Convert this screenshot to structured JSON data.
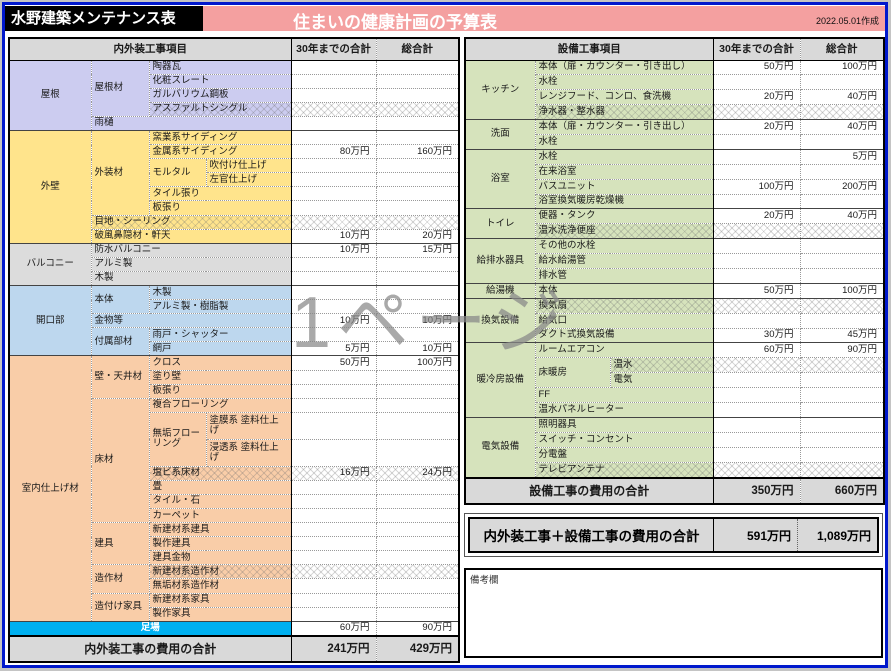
{
  "header": {
    "app_title": "水野建築メンテナンス表",
    "document_title": "住まいの健康計画の予算表",
    "date_note": "2022.05.01作成"
  },
  "watermark": "1ページ",
  "colors": {
    "frame_blue": "#0018cc",
    "banner_pink": "#f4a0a0",
    "title_box_black": "#000000",
    "scaffold_cyan": "#00b0f0",
    "roof_lavender": "#ccccf0",
    "wall_yellow": "#ffe48c",
    "balcony_gray": "#dcdcdc",
    "opening_blue": "#bdd7ee",
    "interior_peach": "#f9cda8",
    "equipment_green": "#d6e3bc",
    "header_gray": "#d9d9d9"
  },
  "left_table": {
    "title": "内外装工事項目",
    "col_30y": "30年までの合計",
    "col_total": "総合計",
    "rows": [
      {
        "cells": [
          {
            "t": "屋根",
            "rs": 5,
            "cls": "roof c"
          },
          {
            "t": "屋根材",
            "rs": 4,
            "cls": "roof"
          },
          {
            "t": "陶器瓦",
            "cs": 2,
            "cls": "roof"
          }
        ],
        "v30": "",
        "vt": ""
      },
      {
        "cells": [
          {
            "t": "化粧スレート",
            "cs": 2,
            "cls": "roof"
          }
        ],
        "v30": "",
        "vt": ""
      },
      {
        "cells": [
          {
            "t": "ガルバリウム鋼板",
            "cs": 2,
            "cls": "roof"
          }
        ],
        "v30": "",
        "vt": ""
      },
      {
        "cells": [
          {
            "t": "アスファルトシングル",
            "cs": 2,
            "cls": "roof"
          }
        ],
        "v30": "",
        "vt": "",
        "hatch": true
      },
      {
        "cells": [
          {
            "t": "雨樋",
            "cs": 3,
            "cls": "roof"
          }
        ],
        "v30": "",
        "vt": ""
      },
      {
        "cells": [
          {
            "t": "外壁",
            "rs": 8,
            "cls": "wall c"
          },
          {
            "t": "外装材",
            "rs": 6,
            "cls": "wall"
          },
          {
            "t": "窯業系サイディング",
            "cs": 2,
            "cls": "wall"
          }
        ],
        "v30": "",
        "vt": ""
      },
      {
        "cells": [
          {
            "t": "金属系サイディング",
            "cs": 2,
            "cls": "wall"
          }
        ],
        "v30": "80万円",
        "vt": "160万円"
      },
      {
        "cells": [
          {
            "t": "モルタル",
            "rs": 2,
            "cls": "wall"
          },
          {
            "t": "吹付け仕上げ",
            "cls": "wall"
          }
        ],
        "v30": "",
        "vt": ""
      },
      {
        "cells": [
          {
            "t": "左官仕上げ",
            "cls": "wall"
          }
        ],
        "v30": "",
        "vt": ""
      },
      {
        "cells": [
          {
            "t": "タイル張り",
            "cs": 2,
            "cls": "wall"
          }
        ],
        "v30": "",
        "vt": ""
      },
      {
        "cells": [
          {
            "t": "板張り",
            "cs": 2,
            "cls": "wall"
          }
        ],
        "v30": "",
        "vt": ""
      },
      {
        "cells": [
          {
            "t": "目地・シーリング",
            "cs": 3,
            "cls": "wall"
          }
        ],
        "v30": "",
        "vt": "",
        "hatch": true
      },
      {
        "cells": [
          {
            "t": "破風鼻隠材・軒天",
            "cs": 3,
            "cls": "wall"
          }
        ],
        "v30": "10万円",
        "vt": "20万円"
      },
      {
        "cells": [
          {
            "t": "バルコニー",
            "rs": 3,
            "cls": "balc c"
          },
          {
            "t": "防水バルコニー",
            "cs": 3,
            "cls": "balc"
          }
        ],
        "v30": "10万円",
        "vt": "15万円"
      },
      {
        "cells": [
          {
            "t": "アルミ製",
            "cs": 3,
            "cls": "balc"
          }
        ],
        "v30": "",
        "vt": ""
      },
      {
        "cells": [
          {
            "t": "木製",
            "cs": 3,
            "cls": "balc"
          }
        ],
        "v30": "",
        "vt": ""
      },
      {
        "cells": [
          {
            "t": "開口部",
            "rs": 5,
            "cls": "open c"
          },
          {
            "t": "本体",
            "rs": 2,
            "cls": "open"
          },
          {
            "t": "木製",
            "cs": 2,
            "cls": "open"
          }
        ],
        "v30": "",
        "vt": ""
      },
      {
        "cells": [
          {
            "t": "アルミ製・樹脂製",
            "cs": 2,
            "cls": "open"
          }
        ],
        "v30": "",
        "vt": ""
      },
      {
        "cells": [
          {
            "t": "金物等",
            "cs": 3,
            "cls": "open"
          }
        ],
        "v30": "10万円",
        "vt": "10万円"
      },
      {
        "cells": [
          {
            "t": "付属部材",
            "rs": 2,
            "cls": "open"
          },
          {
            "t": "雨戸・シャッター",
            "cs": 2,
            "cls": "open"
          }
        ],
        "v30": "",
        "vt": ""
      },
      {
        "cells": [
          {
            "t": "網戸",
            "cs": 2,
            "cls": "open"
          }
        ],
        "v30": "5万円",
        "vt": "10万円"
      },
      {
        "cells": [
          {
            "t": "室内仕上げ材",
            "rs": 17,
            "cls": "intr c"
          },
          {
            "t": "壁・天井材",
            "rs": 3,
            "cls": "intr"
          },
          {
            "t": "クロス",
            "cs": 2,
            "cls": "intr"
          }
        ],
        "v30": "50万円",
        "vt": "100万円"
      },
      {
        "cells": [
          {
            "t": "塗り壁",
            "cs": 2,
            "cls": "intr"
          }
        ],
        "v30": "",
        "vt": ""
      },
      {
        "cells": [
          {
            "t": "板張り",
            "cs": 2,
            "cls": "intr"
          }
        ],
        "v30": "",
        "vt": ""
      },
      {
        "cells": [
          {
            "t": "床材",
            "rs": 7,
            "cls": "intr"
          },
          {
            "t": "複合フローリング",
            "cs": 2,
            "cls": "intr"
          }
        ],
        "v30": "",
        "vt": ""
      },
      {
        "cells": [
          {
            "t": "無垢フローリング",
            "rs": 2,
            "cls": "intr"
          },
          {
            "t": "塗膜系 塗料仕上げ",
            "cls": "intr"
          }
        ],
        "v30": "",
        "vt": ""
      },
      {
        "cells": [
          {
            "t": "浸透系 塗料仕上げ",
            "cls": "intr"
          }
        ],
        "v30": "",
        "vt": ""
      },
      {
        "cells": [
          {
            "t": "塩ビ系床材",
            "cs": 2,
            "cls": "intr"
          }
        ],
        "v30": "16万円",
        "vt": "24万円",
        "hatch": true
      },
      {
        "cells": [
          {
            "t": "畳",
            "cs": 2,
            "cls": "intr"
          }
        ],
        "v30": "",
        "vt": ""
      },
      {
        "cells": [
          {
            "t": "タイル・石",
            "cs": 2,
            "cls": "intr"
          }
        ],
        "v30": "",
        "vt": ""
      },
      {
        "cells": [
          {
            "t": "カーペット",
            "cs": 2,
            "cls": "intr"
          }
        ],
        "v30": "",
        "vt": ""
      },
      {
        "cells": [
          {
            "t": "建具",
            "rs": 3,
            "cls": "intr"
          },
          {
            "t": "新建材系建具",
            "cs": 2,
            "cls": "intr"
          }
        ],
        "v30": "",
        "vt": ""
      },
      {
        "cells": [
          {
            "t": "製作建具",
            "cs": 2,
            "cls": "intr"
          }
        ],
        "v30": "",
        "vt": ""
      },
      {
        "cells": [
          {
            "t": "建具金物",
            "cs": 2,
            "cls": "intr"
          }
        ],
        "v30": "",
        "vt": ""
      },
      {
        "cells": [
          {
            "t": "造作材",
            "rs": 2,
            "cls": "intr"
          },
          {
            "t": "新建材系造作材",
            "cs": 2,
            "cls": "intr"
          }
        ],
        "v30": "",
        "vt": "",
        "hatch": true
      },
      {
        "cells": [
          {
            "t": "無垢材系造作材",
            "cs": 2,
            "cls": "intr"
          }
        ],
        "v30": "",
        "vt": ""
      },
      {
        "cells": [
          {
            "t": "造付け家具",
            "rs": 2,
            "cls": "intr"
          },
          {
            "t": "新建材系家具",
            "cs": 2,
            "cls": "intr"
          }
        ],
        "v30": "",
        "vt": ""
      },
      {
        "cells": [
          {
            "t": "製作家具",
            "cs": 2,
            "cls": "intr"
          }
        ],
        "v30": "",
        "vt": ""
      },
      {
        "cells": [
          {
            "t": "足場",
            "cs": 4,
            "cls": "scaffold"
          }
        ],
        "v30": "60万円",
        "vt": "90万円"
      }
    ],
    "total": {
      "label": "内外装工事の費用の合計",
      "v30": "241万円",
      "vt": "429万円"
    }
  },
  "right_table": {
    "title": "設備工事項目",
    "col_30y": "30年までの合計",
    "col_total": "総合計",
    "rows": [
      {
        "cells": [
          {
            "t": "キッチン",
            "rs": 4,
            "cls": "grn c"
          },
          {
            "t": "本体（扉・カウンター・引き出し）",
            "cs": 2,
            "cls": "grn"
          }
        ],
        "v30": "50万円",
        "vt": "100万円"
      },
      {
        "cells": [
          {
            "t": "水栓",
            "cs": 2,
            "cls": "grn"
          }
        ],
        "v30": "",
        "vt": ""
      },
      {
        "cells": [
          {
            "t": "レンジフード、コンロ、食洗機",
            "cs": 2,
            "cls": "grn"
          }
        ],
        "v30": "20万円",
        "vt": "40万円"
      },
      {
        "cells": [
          {
            "t": "浄水器・整水器",
            "cs": 2,
            "cls": "grn"
          }
        ],
        "v30": "",
        "vt": "",
        "hatch": true
      },
      {
        "cells": [
          {
            "t": "洗面",
            "rs": 2,
            "cls": "grn c"
          },
          {
            "t": "本体（扉・カウンター・引き出し）",
            "cs": 2,
            "cls": "grn"
          }
        ],
        "v30": "20万円",
        "vt": "40万円"
      },
      {
        "cells": [
          {
            "t": "水栓",
            "cs": 2,
            "cls": "grn"
          }
        ],
        "v30": "",
        "vt": ""
      },
      {
        "cells": [
          {
            "t": "浴室",
            "rs": 4,
            "cls": "grn c"
          },
          {
            "t": "水栓",
            "cs": 2,
            "cls": "grn"
          }
        ],
        "v30": "",
        "vt": "5万円"
      },
      {
        "cells": [
          {
            "t": "在来浴室",
            "cs": 2,
            "cls": "grn"
          }
        ],
        "v30": "",
        "vt": ""
      },
      {
        "cells": [
          {
            "t": "バスユニット",
            "cs": 2,
            "cls": "grn"
          }
        ],
        "v30": "100万円",
        "vt": "200万円"
      },
      {
        "cells": [
          {
            "t": "浴室換気暖房乾燥機",
            "cs": 2,
            "cls": "grn"
          }
        ],
        "v30": "",
        "vt": ""
      },
      {
        "cells": [
          {
            "t": "トイレ",
            "rs": 2,
            "cls": "grn c"
          },
          {
            "t": "便器・タンク",
            "cs": 2,
            "cls": "grn"
          }
        ],
        "v30": "20万円",
        "vt": "40万円"
      },
      {
        "cells": [
          {
            "t": "温水洗浄便座",
            "cs": 2,
            "cls": "grn"
          }
        ],
        "v30": "",
        "vt": "",
        "hatch": true
      },
      {
        "cells": [
          {
            "t": "給排水器具",
            "rs": 3,
            "cls": "grn c"
          },
          {
            "t": "その他の水栓",
            "cs": 2,
            "cls": "grn"
          }
        ],
        "v30": "",
        "vt": ""
      },
      {
        "cells": [
          {
            "t": "給水給湯管",
            "cs": 2,
            "cls": "grn"
          }
        ],
        "v30": "",
        "vt": ""
      },
      {
        "cells": [
          {
            "t": "排水管",
            "cs": 2,
            "cls": "grn"
          }
        ],
        "v30": "",
        "vt": ""
      },
      {
        "cells": [
          {
            "t": "給湯機",
            "cls": "grn c"
          },
          {
            "t": "本体",
            "cs": 2,
            "cls": "grn"
          }
        ],
        "v30": "50万円",
        "vt": "100万円"
      },
      {
        "cells": [
          {
            "t": "換気設備",
            "rs": 3,
            "cls": "grn c"
          },
          {
            "t": "換気扇",
            "cs": 2,
            "cls": "grn"
          }
        ],
        "v30": "",
        "vt": "",
        "hatch": true
      },
      {
        "cells": [
          {
            "t": "給気口",
            "cs": 2,
            "cls": "grn"
          }
        ],
        "v30": "",
        "vt": ""
      },
      {
        "cells": [
          {
            "t": "ダクト式換気設備",
            "cs": 2,
            "cls": "grn"
          }
        ],
        "v30": "30万円",
        "vt": "45万円"
      },
      {
        "cells": [
          {
            "t": "暖冷房設備",
            "rs": 5,
            "cls": "grn c"
          },
          {
            "t": "ルームエアコン",
            "cs": 2,
            "cls": "grn"
          }
        ],
        "v30": "60万円",
        "vt": "90万円"
      },
      {
        "cells": [
          {
            "t": "床暖房",
            "rs": 2,
            "cls": "grn"
          },
          {
            "t": "温水",
            "cls": "grn"
          }
        ],
        "v30": "",
        "vt": "",
        "hatch": true
      },
      {
        "cells": [
          {
            "t": "電気",
            "cls": "grn"
          }
        ],
        "v30": "",
        "vt": ""
      },
      {
        "cells": [
          {
            "t": "FF",
            "cs": 2,
            "cls": "grn"
          }
        ],
        "v30": "",
        "vt": ""
      },
      {
        "cells": [
          {
            "t": "温水パネルヒーター",
            "cs": 2,
            "cls": "grn"
          }
        ],
        "v30": "",
        "vt": ""
      },
      {
        "cells": [
          {
            "t": "電気設備",
            "rs": 4,
            "cls": "grn c"
          },
          {
            "t": "照明器具",
            "cs": 2,
            "cls": "grn"
          }
        ],
        "v30": "",
        "vt": ""
      },
      {
        "cells": [
          {
            "t": "スイッチ・コンセント",
            "cs": 2,
            "cls": "grn"
          }
        ],
        "v30": "",
        "vt": ""
      },
      {
        "cells": [
          {
            "t": "分電盤",
            "cs": 2,
            "cls": "grn"
          }
        ],
        "v30": "",
        "vt": ""
      },
      {
        "cells": [
          {
            "t": "テレビアンテナ",
            "cs": 2,
            "cls": "grn"
          }
        ],
        "v30": "",
        "vt": "",
        "hatch": true
      }
    ],
    "total": {
      "label": "設備工事の費用の合計",
      "v30": "350万円",
      "vt": "660万円"
    }
  },
  "grand_total": {
    "label": "内外装工事＋設備工事の費用の合計",
    "v30": "591万円",
    "vt": "1,089万円"
  },
  "remarks_label": "備考欄"
}
